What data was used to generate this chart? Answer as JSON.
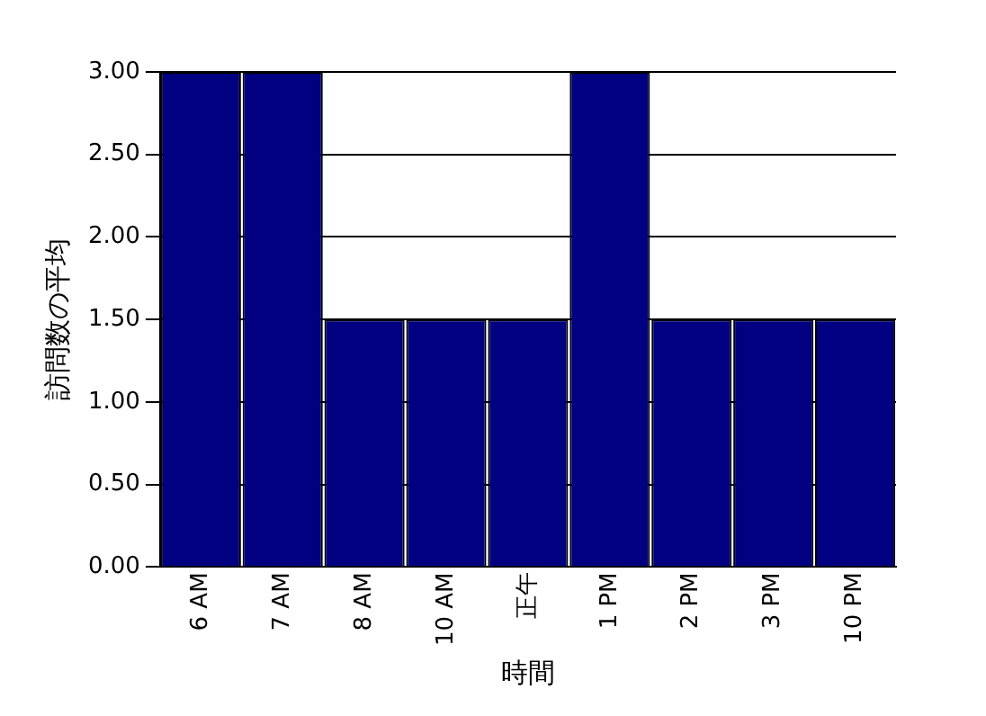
{
  "chart_data": {
    "type": "bar",
    "xlabel": "時間",
    "ylabel": "訪問数の平均",
    "categories": [
      "6 AM",
      "7 AM",
      "8 AM",
      "10 AM",
      "正午",
      "1 PM",
      "2 PM",
      "3 PM",
      "10 PM"
    ],
    "values": [
      3,
      3,
      1.5,
      1.5,
      1.5,
      3,
      1.5,
      1.5,
      1.5
    ],
    "color": "#000080",
    "ylim": [
      0,
      3
    ],
    "yticks": [
      {
        "value": 0,
        "label": "0.00"
      },
      {
        "value": 0.5,
        "label": "0.50"
      },
      {
        "value": 1,
        "label": "1.00"
      },
      {
        "value": 1.5,
        "label": "1.50"
      },
      {
        "value": 2,
        "label": "2.00"
      },
      {
        "value": 2.5,
        "label": "2.50"
      },
      {
        "value": 3,
        "label": "3.00"
      }
    ],
    "grid": "y"
  }
}
